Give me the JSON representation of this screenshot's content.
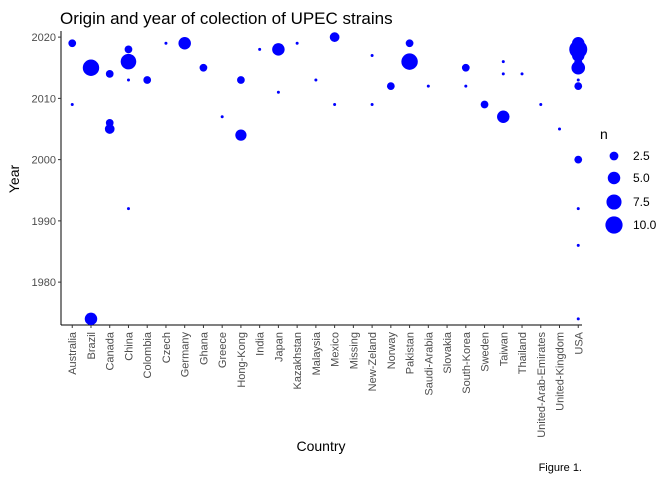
{
  "chart_data": {
    "type": "scatter",
    "title": "Origin and year of colection of UPEC strains",
    "xlabel": "Country",
    "ylabel": "Year",
    "caption": "Figure 1.",
    "ylim": [
      1973,
      2021
    ],
    "y_ticks": [
      1980,
      1990,
      2000,
      2010,
      2020
    ],
    "grid": false,
    "legend_position": "right",
    "point_color": "#0000ff",
    "categories": [
      "Australia",
      "Brazil",
      "Canada",
      "China",
      "Colombia",
      "Czech",
      "Germany",
      "Ghana",
      "Greece",
      "Hong-Kong",
      "India",
      "Japan",
      "Kazakhstan",
      "Malaysia",
      "Mexico",
      "Missing",
      "New-Zeland",
      "Norway",
      "Pakistan",
      "Saudi-Arabia",
      "Slovakia",
      "South-Korea",
      "Sweden",
      "Taiwan",
      "Thailand",
      "United-Arab-Emirates",
      "United-Kingdom",
      "USA"
    ],
    "size_legend": {
      "title": "n",
      "values": [
        2.5,
        5.0,
        7.5,
        10.0
      ],
      "labels": [
        "2.5",
        "5.0",
        "7.5",
        "10.0"
      ]
    },
    "points": [
      {
        "x": "Australia",
        "y": 2019,
        "n": 2
      },
      {
        "x": "Australia",
        "y": 2009,
        "n": 1
      },
      {
        "x": "Brazil",
        "y": 2015,
        "n": 9
      },
      {
        "x": "Brazil",
        "y": 1974,
        "n": 5
      },
      {
        "x": "Canada",
        "y": 2014,
        "n": 2
      },
      {
        "x": "Canada",
        "y": 2006,
        "n": 2
      },
      {
        "x": "Canada",
        "y": 2005,
        "n": 3
      },
      {
        "x": "China",
        "y": 2018,
        "n": 2
      },
      {
        "x": "China",
        "y": 2016,
        "n": 8
      },
      {
        "x": "China",
        "y": 2013,
        "n": 1
      },
      {
        "x": "China",
        "y": 1992,
        "n": 1
      },
      {
        "x": "Colombia",
        "y": 2013,
        "n": 2
      },
      {
        "x": "Czech",
        "y": 2019,
        "n": 1
      },
      {
        "x": "Germany",
        "y": 2019,
        "n": 5
      },
      {
        "x": "Ghana",
        "y": 2015,
        "n": 2
      },
      {
        "x": "Greece",
        "y": 2007,
        "n": 1
      },
      {
        "x": "Hong-Kong",
        "y": 2013,
        "n": 2
      },
      {
        "x": "Hong-Kong",
        "y": 2004,
        "n": 4
      },
      {
        "x": "India",
        "y": 2018,
        "n": 1
      },
      {
        "x": "Japan",
        "y": 2018,
        "n": 5
      },
      {
        "x": "Japan",
        "y": 2011,
        "n": 1
      },
      {
        "x": "Kazakhstan",
        "y": 2019,
        "n": 1
      },
      {
        "x": "Malaysia",
        "y": 2013,
        "n": 1
      },
      {
        "x": "Mexico",
        "y": 2020,
        "n": 3
      },
      {
        "x": "Mexico",
        "y": 2009,
        "n": 1
      },
      {
        "x": "New-Zeland",
        "y": 2017,
        "n": 1
      },
      {
        "x": "New-Zeland",
        "y": 2009,
        "n": 1
      },
      {
        "x": "Norway",
        "y": 2012,
        "n": 2
      },
      {
        "x": "Pakistan",
        "y": 2019,
        "n": 2
      },
      {
        "x": "Pakistan",
        "y": 2016,
        "n": 9
      },
      {
        "x": "Saudi-Arabia",
        "y": 2012,
        "n": 1
      },
      {
        "x": "South-Korea",
        "y": 2015,
        "n": 2
      },
      {
        "x": "South-Korea",
        "y": 2012,
        "n": 1
      },
      {
        "x": "Sweden",
        "y": 2009,
        "n": 2
      },
      {
        "x": "Taiwan",
        "y": 2016,
        "n": 1
      },
      {
        "x": "Taiwan",
        "y": 2014,
        "n": 1
      },
      {
        "x": "Taiwan",
        "y": 2007,
        "n": 5
      },
      {
        "x": "Thailand",
        "y": 2014,
        "n": 1
      },
      {
        "x": "United-Arab-Emirates",
        "y": 2009,
        "n": 1
      },
      {
        "x": "United-Kingdom",
        "y": 2005,
        "n": 1
      },
      {
        "x": "USA",
        "y": 2019,
        "n": 5
      },
      {
        "x": "USA",
        "y": 2018,
        "n": 11
      },
      {
        "x": "USA",
        "y": 2017,
        "n": 5
      },
      {
        "x": "USA",
        "y": 2016,
        "n": 2
      },
      {
        "x": "USA",
        "y": 2015,
        "n": 6
      },
      {
        "x": "USA",
        "y": 2013,
        "n": 1
      },
      {
        "x": "USA",
        "y": 2012,
        "n": 2
      },
      {
        "x": "USA",
        "y": 2000,
        "n": 2
      },
      {
        "x": "USA",
        "y": 1992,
        "n": 1
      },
      {
        "x": "USA",
        "y": 1986,
        "n": 1
      },
      {
        "x": "USA",
        "y": 1974,
        "n": 1
      }
    ]
  }
}
